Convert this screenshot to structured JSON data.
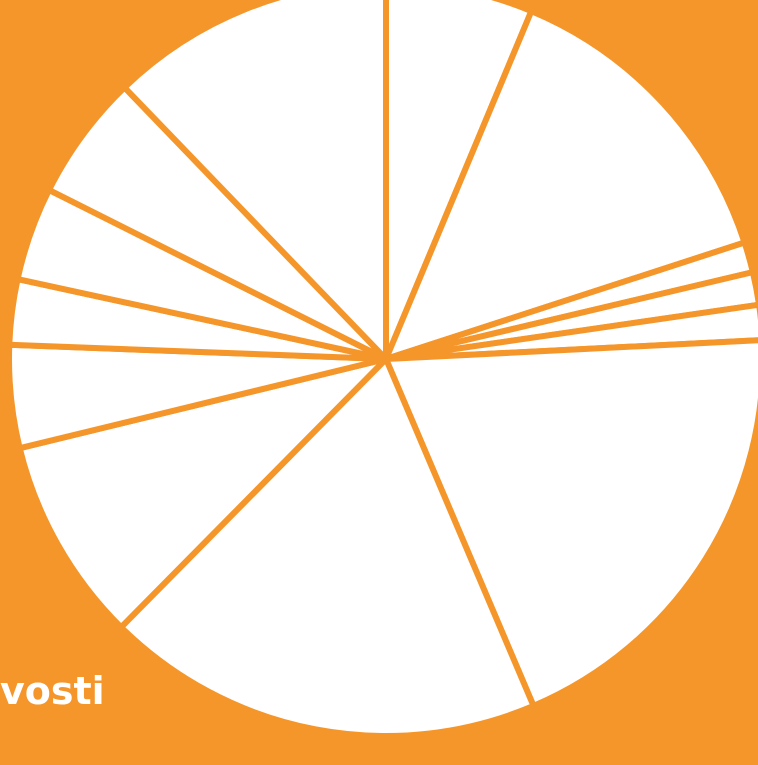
{
  "caption": "vosti",
  "colors": {
    "background": "#F5962B",
    "slice_fill": "#FFFFFF",
    "separator": "#F5962B"
  },
  "chart_data": {
    "type": "pie",
    "title": "",
    "start": "12 o'clock",
    "direction": "clockwise",
    "slices": [
      {
        "label": "",
        "value": 6.3
      },
      {
        "label": "",
        "value": 13.7
      },
      {
        "label": "",
        "value": 1.3
      },
      {
        "label": "",
        "value": 1.4
      },
      {
        "label": "",
        "value": 1.5
      },
      {
        "label": "",
        "value": 19.4
      },
      {
        "label": "",
        "value": 18.8
      },
      {
        "label": "",
        "value": 8.8
      },
      {
        "label": "",
        "value": 4.4
      },
      {
        "label": "",
        "value": 2.8
      },
      {
        "label": "",
        "value": 4.0
      },
      {
        "label": "",
        "value": 5.4
      },
      {
        "label": "",
        "value": 12.2
      }
    ]
  }
}
